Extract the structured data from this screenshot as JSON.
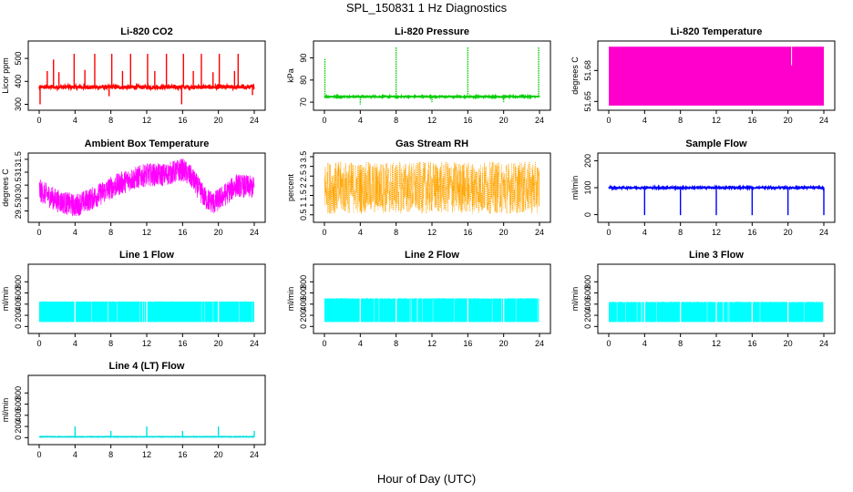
{
  "figure": {
    "title": "SPL_150831  1 Hz Diagnostics",
    "xlabel": "Hour of Day (UTC)"
  },
  "chart_data": [
    {
      "type": "line",
      "title": "Li-820 CO2",
      "ylabel": "Licor ppm",
      "color": "#ff0000",
      "xticks": [
        0,
        4,
        8,
        12,
        16,
        20,
        24
      ],
      "yticks": [
        300,
        400,
        500
      ],
      "ylim": [
        290,
        560
      ],
      "baseline": 375,
      "noise": 8,
      "spikes": [
        [
          0.1,
          300
        ],
        [
          0.9,
          445
        ],
        [
          1.6,
          495
        ],
        [
          2.2,
          440
        ],
        [
          3.9,
          520
        ],
        [
          5.1,
          450
        ],
        [
          6.2,
          520
        ],
        [
          7.8,
          335
        ],
        [
          8.1,
          520
        ],
        [
          9.3,
          445
        ],
        [
          10.2,
          520
        ],
        [
          12.1,
          520
        ],
        [
          12.9,
          445
        ],
        [
          14.2,
          520
        ],
        [
          15.9,
          300
        ],
        [
          16.1,
          520
        ],
        [
          17.2,
          445
        ],
        [
          18.1,
          520
        ],
        [
          19.4,
          440
        ],
        [
          20.1,
          520
        ],
        [
          21.8,
          445
        ],
        [
          22.2,
          520
        ],
        [
          23.8,
          340
        ]
      ]
    },
    {
      "type": "line",
      "title": "Li-820 Pressure",
      "ylabel": "kPa",
      "color": "#00cc00",
      "xticks": [
        0,
        4,
        8,
        12,
        16,
        20,
        24
      ],
      "yticks": [
        70,
        80,
        90
      ],
      "ylim": [
        68,
        96
      ],
      "baseline": 72.5,
      "noise": 0.3,
      "spikes": [
        [
          0.05,
          90
        ],
        [
          4,
          69
        ],
        [
          8,
          95
        ],
        [
          12,
          70
        ],
        [
          16,
          95
        ],
        [
          20,
          70
        ],
        [
          23.9,
          95
        ]
      ]
    },
    {
      "type": "area",
      "title": "Li-820 Temperature",
      "ylabel": "degrees C",
      "color": "#ff00cc",
      "xticks": [
        0,
        4,
        8,
        12,
        16,
        20,
        24
      ],
      "yticks": [
        51.65,
        51.68
      ],
      "yticklabels": [
        "51.65",
        "51.68"
      ],
      "ylim": [
        51.645,
        51.705
      ],
      "band": [
        51.646,
        51.703
      ],
      "gap": [
        20.4,
        51.685
      ]
    },
    {
      "type": "line",
      "title": "Ambient Box Temperature",
      "ylabel": "degrees C",
      "color": "#ff00ff",
      "xticks": [
        0,
        4,
        8,
        12,
        16,
        20,
        24
      ],
      "yticks": [
        29.5,
        30.0,
        30.5,
        31.0,
        31.5
      ],
      "ylim": [
        29.2,
        31.6
      ],
      "profile": [
        [
          0,
          30.3
        ],
        [
          2,
          29.9
        ],
        [
          4,
          29.7
        ],
        [
          6,
          30.0
        ],
        [
          8,
          30.4
        ],
        [
          10,
          30.7
        ],
        [
          12,
          30.9
        ],
        [
          14,
          30.9
        ],
        [
          16,
          31.1
        ],
        [
          17,
          30.8
        ],
        [
          18.5,
          30.0
        ],
        [
          19.5,
          29.8
        ],
        [
          21,
          30.2
        ],
        [
          22,
          30.5
        ],
        [
          24,
          30.4
        ]
      ],
      "noise": 0.45
    },
    {
      "type": "line",
      "title": "Gas Stream RH",
      "ylabel": "percent",
      "color": "#ffa500",
      "xticks": [
        0,
        4,
        8,
        12,
        16,
        20,
        24
      ],
      "yticks": [
        0.5,
        1.0,
        1.5,
        2.0,
        2.5,
        3.0,
        3.5
      ],
      "ylim": [
        0.3,
        3.5
      ],
      "baseline": 1.9,
      "noise": 1.35,
      "dotted": true
    },
    {
      "type": "line",
      "title": "Sample Flow",
      "ylabel": "ml/min",
      "color": "#0000ff",
      "xticks": [
        0,
        4,
        8,
        12,
        16,
        20,
        24
      ],
      "yticks": [
        0,
        100,
        200
      ],
      "ylim": [
        -15,
        215
      ],
      "baseline": 100,
      "noise": 3,
      "spikes": [
        [
          4,
          -2
        ],
        [
          8,
          -2
        ],
        [
          12,
          -2
        ],
        [
          16,
          -2
        ],
        [
          20,
          -2
        ],
        [
          24,
          -2
        ]
      ]
    },
    {
      "type": "area",
      "title": "Line 1 Flow",
      "ylabel": "ml/min",
      "color": "#00ffff",
      "xticks": [
        0,
        4,
        8,
        12,
        16,
        20,
        24
      ],
      "yticks": [
        0,
        200,
        400,
        600,
        800
      ],
      "ylim": [
        -60,
        1050
      ],
      "band": [
        80,
        450
      ],
      "topNoise": 8,
      "gap": [
        4,
        12,
        20
      ]
    },
    {
      "type": "area",
      "title": "Line 2 Flow",
      "ylabel": "ml/min",
      "color": "#00ffff",
      "xticks": [
        0,
        4,
        8,
        12,
        16,
        20,
        24
      ],
      "yticks": [
        0,
        200,
        400,
        600,
        800
      ],
      "ylim": [
        -60,
        1050
      ],
      "band": [
        80,
        510
      ],
      "topNoise": 15,
      "gap": [
        4,
        8,
        16,
        20,
        24
      ]
    },
    {
      "type": "area",
      "title": "Line 3 Flow",
      "ylabel": "ml/min",
      "color": "#00ffff",
      "xticks": [
        0,
        4,
        8,
        12,
        16,
        20,
        24
      ],
      "yticks": [
        0,
        200,
        400,
        600,
        800
      ],
      "ylim": [
        -60,
        1050
      ],
      "band": [
        80,
        445
      ],
      "topNoise": 15,
      "gap": [
        4,
        8,
        12,
        16,
        20,
        24
      ]
    },
    {
      "type": "line",
      "title": "Line 4 (LT) Flow",
      "ylabel": "ml/min",
      "color": "#00e0e0",
      "xticks": [
        0,
        4,
        8,
        12,
        16,
        20,
        24
      ],
      "yticks": [
        0,
        200,
        400,
        600,
        800
      ],
      "ylim": [
        -60,
        1050
      ],
      "baseline": 15,
      "noise": 4,
      "spikes": [
        [
          4,
          200
        ],
        [
          8,
          120
        ],
        [
          12,
          200
        ],
        [
          16,
          120
        ],
        [
          20,
          200
        ],
        [
          24,
          120
        ]
      ]
    }
  ]
}
